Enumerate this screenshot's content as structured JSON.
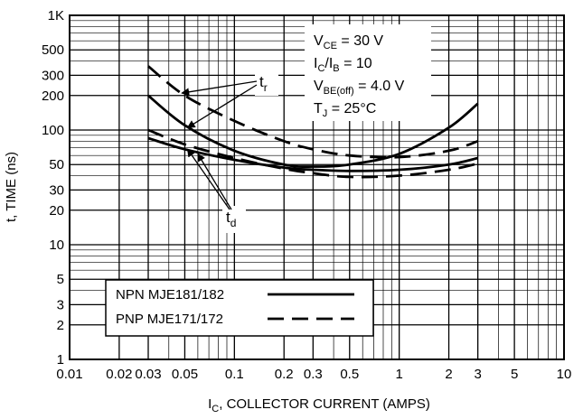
{
  "chart_data": {
    "type": "line",
    "x_scale": "log",
    "y_scale": "log",
    "xlim": [
      0.01,
      10
    ],
    "ylim": [
      1,
      1000
    ],
    "grid": true,
    "xlabel": {
      "main": "I",
      "sub": "C",
      "rest": ", COLLECTOR CURRENT (AMPS)"
    },
    "ylabel": "t, TIME (ns)",
    "x_ticks": [
      {
        "v": 0.01,
        "label": "0.01"
      },
      {
        "v": 0.02,
        "label": "0.02"
      },
      {
        "v": 0.03,
        "label": "0.03"
      },
      {
        "v": 0.05,
        "label": "0.05"
      },
      {
        "v": 0.1,
        "label": "0.1"
      },
      {
        "v": 0.2,
        "label": "0.2"
      },
      {
        "v": 0.3,
        "label": "0.3"
      },
      {
        "v": 0.5,
        "label": "0.5"
      },
      {
        "v": 1,
        "label": "1"
      },
      {
        "v": 2,
        "label": "2"
      },
      {
        "v": 3,
        "label": "3"
      },
      {
        "v": 5,
        "label": "5"
      },
      {
        "v": 10,
        "label": "10"
      }
    ],
    "y_ticks": [
      {
        "v": 1,
        "label": "1"
      },
      {
        "v": 2,
        "label": "2"
      },
      {
        "v": 3,
        "label": "3"
      },
      {
        "v": 5,
        "label": "5"
      },
      {
        "v": 10,
        "label": "10"
      },
      {
        "v": 20,
        "label": "20"
      },
      {
        "v": 30,
        "label": "30"
      },
      {
        "v": 50,
        "label": "50"
      },
      {
        "v": 100,
        "label": "100"
      },
      {
        "v": 200,
        "label": "200"
      },
      {
        "v": 300,
        "label": "300"
      },
      {
        "v": 500,
        "label": "500"
      },
      {
        "v": 1000,
        "label": "1K"
      }
    ],
    "conditions": [
      {
        "main": "V",
        "sub": "CE",
        "rest": " = 30 V"
      },
      {
        "main": "I",
        "sub": "C",
        "rest": "/I",
        "sub2": "B",
        "rest2": " = 10"
      },
      {
        "main": "V",
        "sub": "BE(off)",
        "rest": " = 4.0 V"
      },
      {
        "main": "T",
        "sub": "J",
        "rest": " = 25°C"
      }
    ],
    "callouts": [
      {
        "main": "t",
        "sub": "r"
      },
      {
        "main": "t",
        "sub": "d"
      }
    ],
    "legend": [
      {
        "label": "NPN MJE181/182",
        "style": "solid"
      },
      {
        "label": "PNP MJE171/172",
        "style": "dashed"
      }
    ],
    "series": [
      {
        "group": "tr",
        "style": "solid",
        "x": [
          0.03,
          0.05,
          0.1,
          0.2,
          0.3,
          0.5,
          1,
          2,
          3
        ],
        "y": [
          200,
          110,
          66,
          50,
          48,
          50,
          62,
          105,
          170
        ]
      },
      {
        "group": "tr",
        "style": "dashed",
        "x": [
          0.03,
          0.05,
          0.1,
          0.2,
          0.3,
          0.5,
          1,
          2,
          3
        ],
        "y": [
          360,
          200,
          120,
          80,
          68,
          60,
          58,
          66,
          80
        ]
      },
      {
        "group": "td",
        "style": "solid",
        "x": [
          0.03,
          0.05,
          0.1,
          0.2,
          0.3,
          0.5,
          1,
          2,
          3
        ],
        "y": [
          85,
          68,
          55,
          47,
          45,
          44,
          45,
          50,
          57
        ]
      },
      {
        "group": "td",
        "style": "dashed",
        "x": [
          0.03,
          0.05,
          0.1,
          0.2,
          0.3,
          0.5,
          1,
          2,
          3
        ],
        "y": [
          100,
          75,
          57,
          46,
          42,
          39,
          40,
          45,
          51
        ]
      }
    ]
  }
}
